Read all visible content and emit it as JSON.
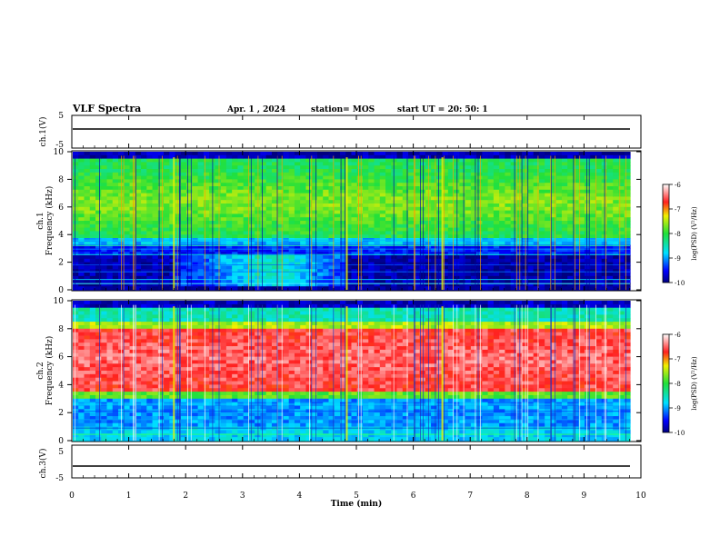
{
  "header": {
    "title": "VLF Spectra",
    "date": "Apr. 1 , 2024",
    "station": "station= MOS",
    "start": "start  UT =   20: 50: 1"
  },
  "chart_data": [
    {
      "type": "line",
      "panel": "ch1-waveform",
      "ylabel": "ch.1(V)",
      "ylim": [
        -5,
        5
      ],
      "y_ticks": [
        "5",
        "-5"
      ],
      "x_range": [
        0,
        10
      ],
      "series": [
        {
          "values": [
            {
              "x": 0,
              "y": 0
            },
            {
              "x": 9.8,
              "y": 0
            }
          ]
        }
      ]
    },
    {
      "type": "heatmap",
      "panel": "ch1-spectrogram",
      "ylabel": "ch.1",
      "ylabel2": "Frequency (kHz)",
      "ylim": [
        0,
        10
      ],
      "y_ticks": [
        "0",
        "2",
        "4",
        "6",
        "8",
        "10"
      ],
      "x_range": [
        0,
        9.8
      ],
      "colorbar": {
        "label": "log(PSD) (V²/Hz)",
        "range": [
          -10,
          -6
        ],
        "ticks": [
          "-6",
          "-7",
          "-8",
          "-9",
          "-10"
        ]
      }
    },
    {
      "type": "heatmap",
      "panel": "ch2-spectrogram",
      "ylabel": "ch.2",
      "ylabel2": "Frequency (kHz)",
      "ylim": [
        0,
        10
      ],
      "y_ticks": [
        "0",
        "2",
        "4",
        "6",
        "8",
        "10"
      ],
      "x_range": [
        0,
        9.8
      ],
      "colorbar": {
        "label": "log(PSD) (V²/Hz)",
        "range": [
          -10,
          -6
        ],
        "ticks": [
          "-6",
          "-7",
          "-8",
          "-9",
          "-10"
        ]
      }
    },
    {
      "type": "line",
      "panel": "ch3-waveform",
      "ylabel": "ch.3(V)",
      "ylim": [
        -5,
        5
      ],
      "y_ticks": [
        "5",
        "-5"
      ],
      "xlabel": "Time (min)",
      "xlim": [
        0,
        10
      ],
      "x_ticks": [
        "0",
        "1",
        "2",
        "3",
        "4",
        "5",
        "6",
        "7",
        "8",
        "9",
        "10"
      ],
      "series": [
        {
          "values": [
            {
              "x": 0,
              "y": 0
            },
            {
              "x": 9.8,
              "y": 0
            }
          ]
        }
      ]
    }
  ]
}
